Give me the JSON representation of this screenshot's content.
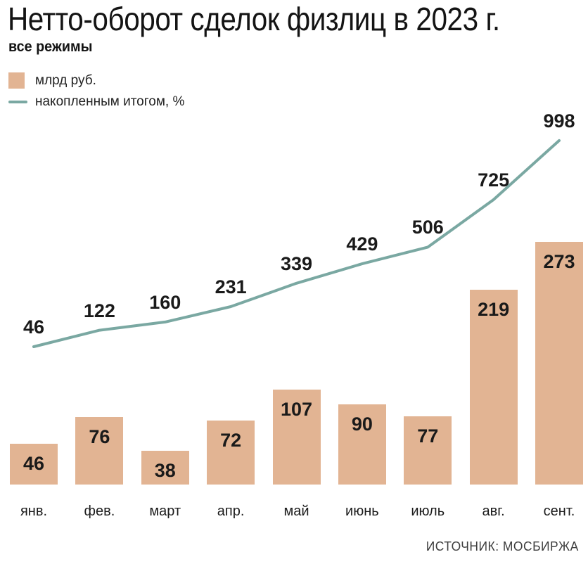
{
  "chart_data": {
    "type": "bar+line",
    "title": "Нетто-оборот сделок физлиц в 2023 г.",
    "subtitle": "все режимы",
    "categories": [
      "янв.",
      "фев.",
      "март",
      "апр.",
      "май",
      "июнь",
      "июль",
      "авг.",
      "сент."
    ],
    "series": [
      {
        "name": "млрд руб.",
        "kind": "bar",
        "color": "#e2b493",
        "values": [
          46,
          76,
          38,
          72,
          107,
          90,
          77,
          219,
          273
        ]
      },
      {
        "name": "накопленным итогом, %",
        "kind": "line",
        "color": "#7aa8a2",
        "values": [
          46,
          122,
          160,
          231,
          339,
          429,
          506,
          725,
          998
        ]
      }
    ],
    "value_labels": true,
    "grid": false,
    "axes_hidden": true,
    "legend_position": "top-left",
    "source": "ИСТОЧНИК: МОСБИРЖА"
  }
}
